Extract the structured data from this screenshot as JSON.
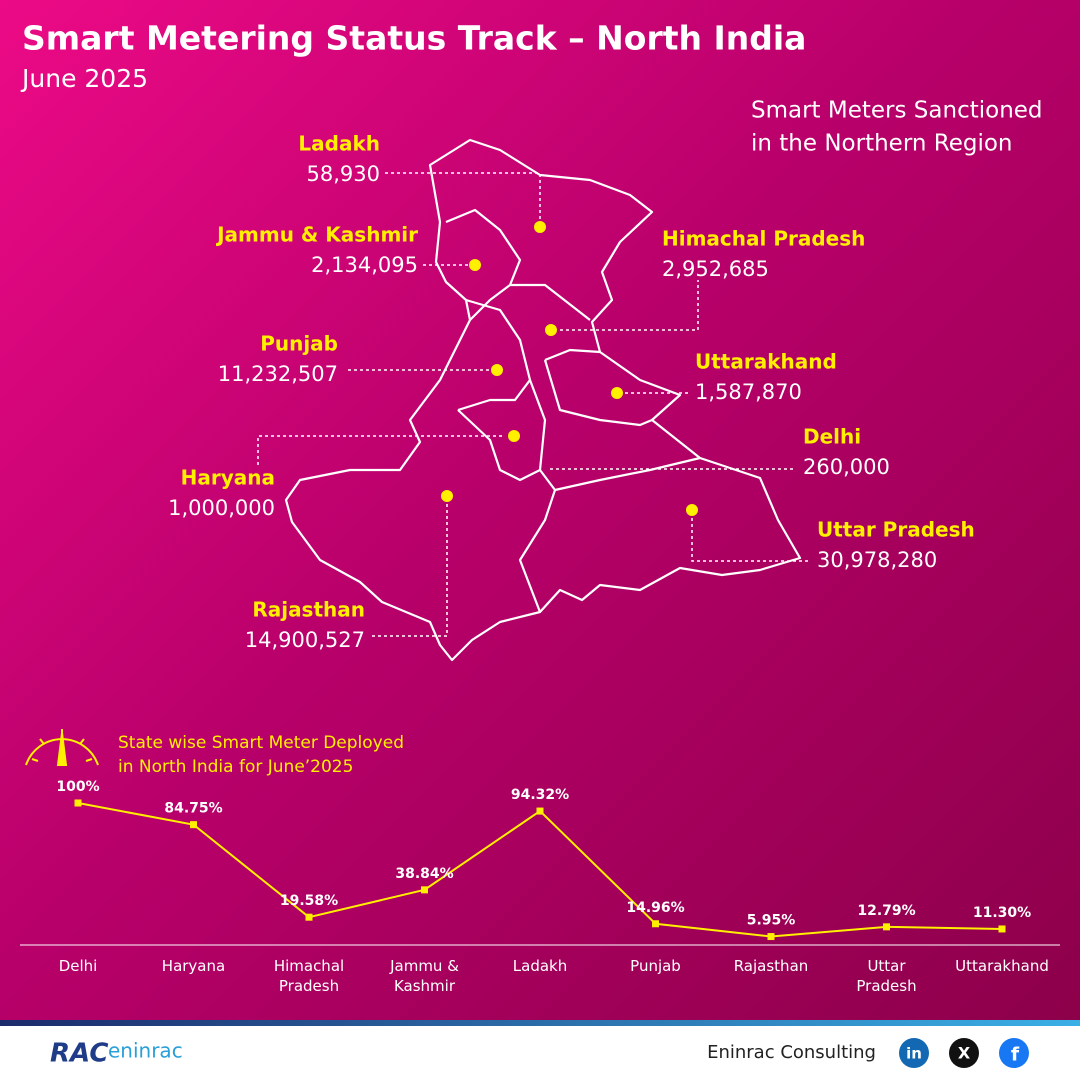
{
  "header": {
    "title": "Smart Metering Status Track – North India",
    "subtitle": "June 2025"
  },
  "map": {
    "title": [
      "Smart Meters Sanctioned",
      "in the Northern Region"
    ],
    "states": [
      {
        "name": "Ladakh",
        "value": "58,930"
      },
      {
        "name": "Jammu & Kashmir",
        "value": "2,134,095"
      },
      {
        "name": "Himachal Pradesh",
        "value": "2,952,685"
      },
      {
        "name": "Punjab",
        "value": "11,232,507"
      },
      {
        "name": "Uttarakhand",
        "value": "1,587,870"
      },
      {
        "name": "Delhi",
        "value": "260,000"
      },
      {
        "name": "Haryana",
        "value": "1,000,000"
      },
      {
        "name": "Uttar Pradesh",
        "value": "30,978,280"
      },
      {
        "name": "Rajasthan",
        "value": "14,900,527"
      }
    ]
  },
  "chart_data": {
    "type": "line",
    "title": [
      "State wise Smart Meter Deployed",
      "in North India for June’2025"
    ],
    "categories": [
      "Delhi",
      "Haryana",
      "Himachal Pradesh",
      "Jammu & Kashmir",
      "Ladakh",
      "Punjab",
      "Rajasthan",
      "Uttar Pradesh",
      "Uttarakhand"
    ],
    "values": [
      100,
      84.75,
      19.58,
      38.84,
      94.32,
      14.96,
      5.95,
      12.79,
      11.3
    ],
    "value_labels": [
      "100%",
      "84.75%",
      "19.58%",
      "38.84%",
      "94.32%",
      "14.96%",
      "5.95%",
      "12.79%",
      "11.30%"
    ],
    "color": "#ffef00",
    "ylim": [
      0,
      100
    ]
  },
  "footer": {
    "logo": [
      "RAC",
      "eninrac"
    ],
    "company": "Eninrac Consulting",
    "social": [
      "in",
      "X",
      "f"
    ]
  }
}
